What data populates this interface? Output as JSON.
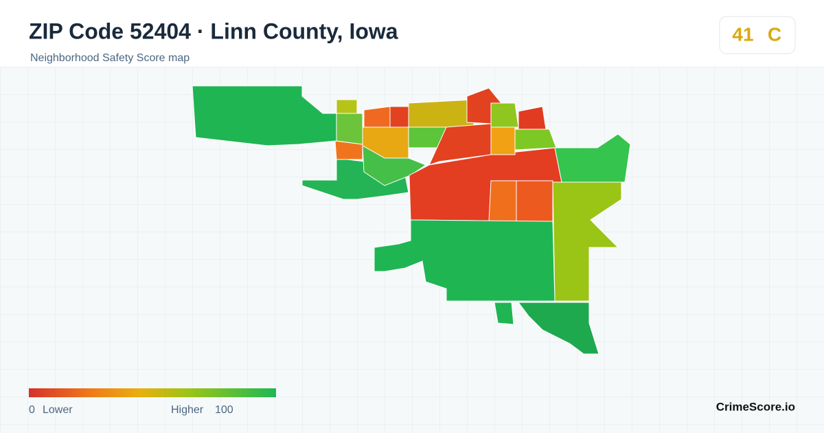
{
  "header": {
    "title": "ZIP Code 52404 · Linn County, Iowa",
    "subtitle": "Neighborhood Safety Score map"
  },
  "score": {
    "value": 41,
    "grade": "C"
  },
  "legend": {
    "min": 0,
    "min_label": "Lower",
    "max_label": "Higher",
    "max": 100
  },
  "brand": "CrimeScore.io"
}
